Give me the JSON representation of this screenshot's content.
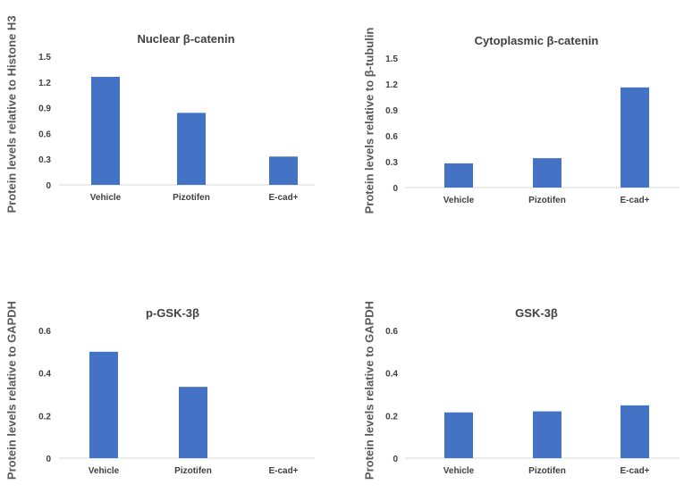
{
  "chart_data": [
    {
      "type": "bar",
      "title": "Nuclear β-catenin",
      "ylabel": "Protein levels relative to Histone H3",
      "xlabel": "",
      "categories": [
        "Vehicle",
        "Pizotifen",
        "E-cad+"
      ],
      "values": [
        1.26,
        0.84,
        0.33
      ],
      "ylim": [
        0,
        1.5
      ],
      "yticks": [
        0,
        0.3,
        0.6,
        0.9,
        1.2,
        1.5
      ],
      "ytick_labels": [
        "0",
        "0.3",
        "0.6",
        "0.9",
        "1.2",
        "1.5"
      ],
      "grid": false,
      "color": "#4472c4"
    },
    {
      "type": "bar",
      "title": "Cytoplasmic β-catenin",
      "ylabel": "Protein levels relative to β-tubulin",
      "xlabel": "",
      "categories": [
        "Vehicle",
        "Pizotifen",
        "E-cad+"
      ],
      "values": [
        0.28,
        0.34,
        1.16
      ],
      "ylim": [
        0,
        1.5
      ],
      "yticks": [
        0,
        0.3,
        0.6,
        0.9,
        1.2,
        1.5
      ],
      "ytick_labels": [
        "0",
        "0.3",
        "0.6",
        "0.9",
        "1.2",
        "1.5"
      ],
      "grid": false,
      "color": "#4472c4"
    },
    {
      "type": "bar",
      "title": "p-GSK-3β",
      "ylabel": "Protein levels relative to GAPDH",
      "xlabel": "",
      "categories": [
        "Vehicle",
        "Pizotifen",
        "E-cad+"
      ],
      "values": [
        0.5,
        0.335,
        0
      ],
      "ylim": [
        0,
        0.6
      ],
      "yticks": [
        0,
        0.2,
        0.4,
        0.6
      ],
      "ytick_labels": [
        "0",
        "0.2",
        "0.4",
        "0.6"
      ],
      "grid": false,
      "color": "#4472c4"
    },
    {
      "type": "bar",
      "title": "GSK-3β",
      "ylabel": "Protein levels relative to GAPDH",
      "xlabel": "",
      "categories": [
        "Vehicle",
        "Pizotifen",
        "E-cad+"
      ],
      "values": [
        0.215,
        0.22,
        0.248
      ],
      "ylim": [
        0,
        0.6
      ],
      "yticks": [
        0,
        0.2,
        0.4,
        0.6
      ],
      "ytick_labels": [
        "0",
        "0.2",
        "0.4",
        "0.6"
      ],
      "grid": false,
      "color": "#4472c4"
    }
  ]
}
